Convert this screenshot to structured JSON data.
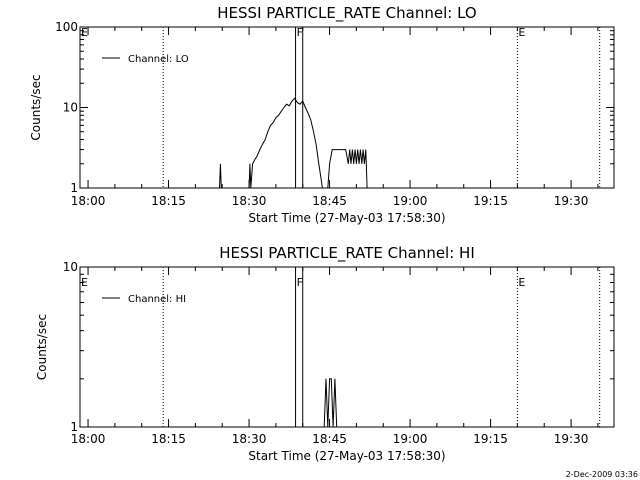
{
  "timestamp": "2-Dec-2009 03:36",
  "chart_data": [
    {
      "type": "line",
      "title": "HESSI PARTICLE_RATE Channel: LO",
      "xlabel": "Start Time (27-May-03 17:58:30)",
      "ylabel": "Counts/sec",
      "y_scale": "log",
      "ylim": [
        1,
        100
      ],
      "y_ticks": [
        {
          "value": 1,
          "label": "1"
        },
        {
          "value": 10,
          "label": "10"
        },
        {
          "value": 100,
          "label": "100"
        }
      ],
      "xlim": [
        "17:58:30",
        "19:38:00"
      ],
      "x_ticks": [
        "18:00",
        "18:15",
        "18:30",
        "18:45",
        "19:00",
        "19:15",
        "19:30"
      ],
      "legend": {
        "entries": [
          "Channel: LO"
        ],
        "position": "top-left"
      },
      "markers": [
        {
          "label": "E",
          "time": "17:58:30",
          "style": "dotted"
        },
        {
          "label": "",
          "time": "18:14:00",
          "style": "dotted"
        },
        {
          "label": "F",
          "time": "18:38:40",
          "style": "solid"
        },
        {
          "label": "",
          "time": "18:40:00",
          "style": "solid"
        },
        {
          "label": "E",
          "time": "19:20:00",
          "style": "dotted"
        },
        {
          "label": "",
          "time": "19:35:20",
          "style": "dotted"
        }
      ],
      "series": [
        {
          "name": "Channel: LO",
          "segments": [
            [
              [
                "18:24:30",
                1
              ],
              [
                "18:24:40",
                2
              ],
              [
                "18:24:50",
                1
              ]
            ],
            [
              [
                "18:30:00",
                1
              ],
              [
                "18:30:10",
                2
              ],
              [
                "18:30:20",
                1
              ],
              [
                "18:30:40",
                2
              ],
              [
                "18:31:00",
                2.2
              ],
              [
                "18:31:30",
                2.5
              ],
              [
                "18:32:00",
                3
              ],
              [
                "18:32:30",
                3.5
              ],
              [
                "18:33:00",
                4
              ],
              [
                "18:33:30",
                5
              ],
              [
                "18:34:00",
                6
              ],
              [
                "18:34:30",
                6.5
              ],
              [
                "18:35:00",
                7.5
              ],
              [
                "18:35:30",
                8
              ],
              [
                "18:36:00",
                9
              ],
              [
                "18:36:30",
                10
              ],
              [
                "18:37:00",
                11
              ],
              [
                "18:37:30",
                10.5
              ],
              [
                "18:38:00",
                12
              ],
              [
                "18:38:30",
                13
              ],
              [
                "18:39:00",
                11.5
              ],
              [
                "18:39:30",
                11
              ],
              [
                "18:40:00",
                12
              ],
              [
                "18:40:30",
                10
              ],
              [
                "18:41:00",
                8.5
              ],
              [
                "18:41:30",
                7
              ],
              [
                "18:42:00",
                5
              ],
              [
                "18:42:30",
                3.5
              ],
              [
                "18:43:00",
                2
              ],
              [
                "18:43:30",
                1.2
              ],
              [
                "18:43:40",
                1
              ]
            ],
            [
              [
                "18:44:40",
                1
              ],
              [
                "18:45:00",
                2
              ],
              [
                "18:45:30",
                3
              ],
              [
                "18:46:00",
                3
              ],
              [
                "18:46:30",
                3
              ],
              [
                "18:47:00",
                3
              ],
              [
                "18:47:30",
                3
              ],
              [
                "18:48:00",
                3
              ],
              [
                "18:48:30",
                2
              ],
              [
                "18:48:45",
                3
              ],
              [
                "18:49:00",
                2
              ],
              [
                "18:49:15",
                3
              ],
              [
                "18:49:30",
                2
              ],
              [
                "18:49:45",
                3
              ],
              [
                "18:50:00",
                2
              ],
              [
                "18:50:15",
                3
              ],
              [
                "18:50:30",
                2
              ],
              [
                "18:50:45",
                3
              ],
              [
                "18:51:00",
                2
              ],
              [
                "18:51:15",
                3
              ],
              [
                "18:51:30",
                2
              ],
              [
                "18:51:45",
                3
              ],
              [
                "18:52:00",
                1
              ]
            ]
          ]
        }
      ]
    },
    {
      "type": "line",
      "title": "HESSI PARTICLE_RATE Channel: HI",
      "xlabel": "Start Time (27-May-03 17:58:30)",
      "ylabel": "Counts/sec",
      "y_scale": "log",
      "ylim": [
        1,
        10
      ],
      "y_ticks": [
        {
          "value": 1,
          "label": "1"
        },
        {
          "value": 10,
          "label": "10"
        }
      ],
      "xlim": [
        "17:58:30",
        "19:38:00"
      ],
      "x_ticks": [
        "18:00",
        "18:15",
        "18:30",
        "18:45",
        "19:00",
        "19:15",
        "19:30"
      ],
      "legend": {
        "entries": [
          "Channel: HI"
        ],
        "position": "top-left"
      },
      "markers": [
        {
          "label": "E",
          "time": "17:58:30",
          "style": "dotted"
        },
        {
          "label": "",
          "time": "18:14:00",
          "style": "dotted"
        },
        {
          "label": "F",
          "time": "18:38:40",
          "style": "solid"
        },
        {
          "label": "",
          "time": "18:40:00",
          "style": "solid"
        },
        {
          "label": "E",
          "time": "19:20:00",
          "style": "dotted"
        },
        {
          "label": "",
          "time": "19:35:20",
          "style": "dotted"
        }
      ],
      "series": [
        {
          "name": "Channel: HI",
          "segments": [
            [
              [
                "18:44:00",
                1
              ],
              [
                "18:44:20",
                2
              ],
              [
                "18:44:40",
                1
              ],
              [
                "18:45:00",
                2
              ],
              [
                "18:45:20",
                2
              ],
              [
                "18:45:40",
                1
              ],
              [
                "18:46:00",
                2
              ],
              [
                "18:46:20",
                1
              ]
            ]
          ]
        }
      ]
    }
  ]
}
